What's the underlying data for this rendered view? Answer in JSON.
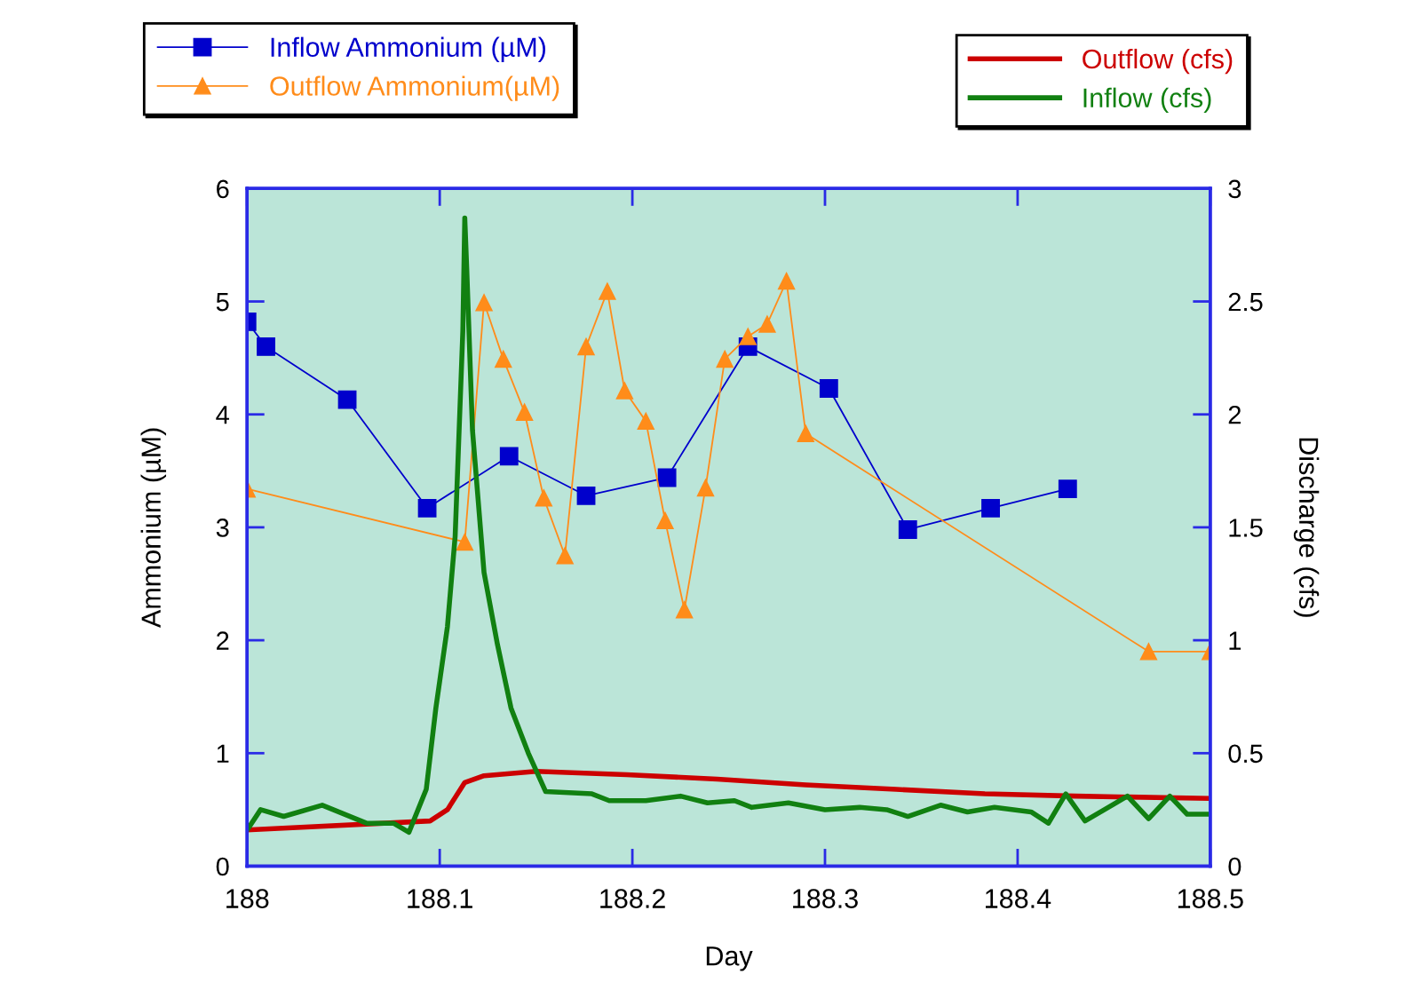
{
  "chart_data": {
    "type": "line",
    "xlabel": "Day",
    "ylabel": "Ammonium (µM)",
    "y2label": "Discharge (cfs)",
    "xlim": [
      188,
      188.5
    ],
    "xticks": [
      188,
      188.1,
      188.2,
      188.3,
      188.4,
      188.5
    ],
    "ylim": [
      0,
      6
    ],
    "yticks": [
      0,
      1,
      2,
      3,
      4,
      5,
      6
    ],
    "y2lim": [
      0,
      3
    ],
    "y2ticks": [
      0,
      0.5,
      1,
      1.5,
      2,
      2.5,
      3
    ],
    "grid": false,
    "legend": "top",
    "series": [
      {
        "name": "Inflow Ammonium (µM)",
        "color": "#0000cc",
        "marker": "square",
        "axis": "y",
        "x": [
          188.0,
          188.0098,
          188.052,
          188.0935,
          188.136,
          188.176,
          188.218,
          188.26,
          188.302,
          188.343,
          188.386,
          188.426
        ],
        "values": [
          4.82,
          4.6,
          4.13,
          3.17,
          3.63,
          3.28,
          3.44,
          4.6,
          4.23,
          2.98,
          3.17,
          3.34
        ]
      },
      {
        "name": "Outflow Ammonium(µM)",
        "color": "#ff8c1a",
        "marker": "triangle",
        "axis": "y",
        "x": [
          188.0,
          188.113,
          188.123,
          188.133,
          188.144,
          188.154,
          188.165,
          188.176,
          188.187,
          188.196,
          188.207,
          188.217,
          188.227,
          188.238,
          188.248,
          188.26,
          188.27,
          188.28,
          188.29,
          188.468,
          188.5
        ],
        "values": [
          3.34,
          2.87,
          4.99,
          4.49,
          4.02,
          3.26,
          2.75,
          4.6,
          5.09,
          4.21,
          3.94,
          3.06,
          2.27,
          3.35,
          4.49,
          4.69,
          4.8,
          5.18,
          3.83,
          1.9,
          1.9
        ]
      },
      {
        "name": "Outflow (cfs)",
        "color": "#cc0000",
        "marker": "none",
        "axis": "y2",
        "x": [
          188.0,
          188.095,
          188.104,
          188.113,
          188.123,
          188.15,
          188.197,
          188.244,
          188.29,
          188.337,
          188.383,
          188.43,
          188.5
        ],
        "values": [
          0.16,
          0.2,
          0.25,
          0.37,
          0.4,
          0.42,
          0.405,
          0.385,
          0.36,
          0.34,
          0.32,
          0.31,
          0.3
        ]
      },
      {
        "name": "Inflow (cfs)",
        "color": "#118011",
        "marker": "none",
        "axis": "y2",
        "x": [
          188.0,
          188.007,
          188.019,
          188.039,
          188.062,
          188.076,
          188.084,
          188.093,
          188.098,
          188.104,
          188.108,
          188.112,
          188.113,
          188.114,
          188.117,
          188.123,
          188.13,
          188.137,
          188.146,
          188.155,
          188.179,
          188.188,
          188.207,
          188.225,
          188.239,
          188.253,
          188.262,
          188.281,
          188.3,
          188.318,
          188.332,
          188.343,
          188.36,
          188.374,
          188.388,
          188.407,
          188.416,
          188.425,
          188.435,
          188.449,
          188.457,
          188.468,
          188.479,
          188.488,
          188.5
        ],
        "values": [
          0.16,
          0.25,
          0.22,
          0.27,
          0.19,
          0.19,
          0.15,
          0.34,
          0.7,
          1.06,
          1.46,
          2.37,
          2.87,
          2.65,
          1.93,
          1.3,
          0.98,
          0.7,
          0.5,
          0.33,
          0.32,
          0.29,
          0.29,
          0.31,
          0.28,
          0.29,
          0.26,
          0.28,
          0.25,
          0.26,
          0.25,
          0.22,
          0.27,
          0.24,
          0.26,
          0.24,
          0.19,
          0.32,
          0.2,
          0.27,
          0.31,
          0.21,
          0.31,
          0.23,
          0.23
        ]
      }
    ]
  }
}
